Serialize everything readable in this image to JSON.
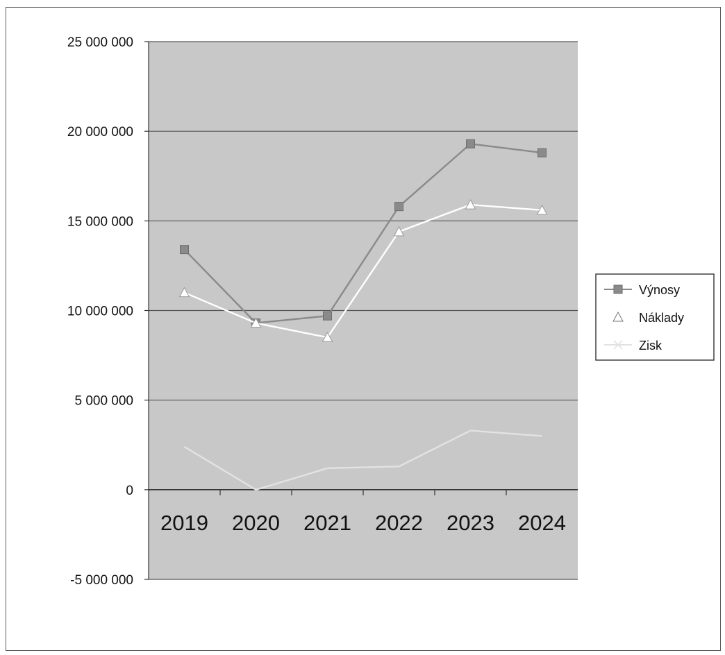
{
  "chart_data": {
    "type": "line",
    "categories": [
      "2019",
      "2020",
      "2021",
      "2022",
      "2023",
      "2024"
    ],
    "y_ticks": [
      25000000,
      20000000,
      15000000,
      10000000,
      5000000,
      0,
      -5000000
    ],
    "y_tick_labels": [
      "25 000 000",
      "20 000 000",
      "15 000 000",
      "10 000 000",
      "5 000 000",
      "0",
      "-5 000 000"
    ],
    "ylim": [
      -5000000,
      25000000
    ],
    "grid": true,
    "legend_position": "right",
    "series": [
      {
        "name": "Výnosy",
        "marker": "square",
        "color": "#8a8a8a",
        "values": [
          13400000,
          9300000,
          9700000,
          15800000,
          19300000,
          18800000
        ]
      },
      {
        "name": "Náklady",
        "marker": "triangle",
        "color": "#ffffff",
        "values": [
          11000000,
          9300000,
          8500000,
          14400000,
          15900000,
          15600000
        ]
      },
      {
        "name": "Zisk",
        "marker": "x",
        "color": "#e2e2e2",
        "values": [
          2400000,
          0,
          1200000,
          1300000,
          3300000,
          3000000
        ]
      }
    ],
    "plot_background": "#c8c8c8",
    "gridline_color": "#555555"
  }
}
